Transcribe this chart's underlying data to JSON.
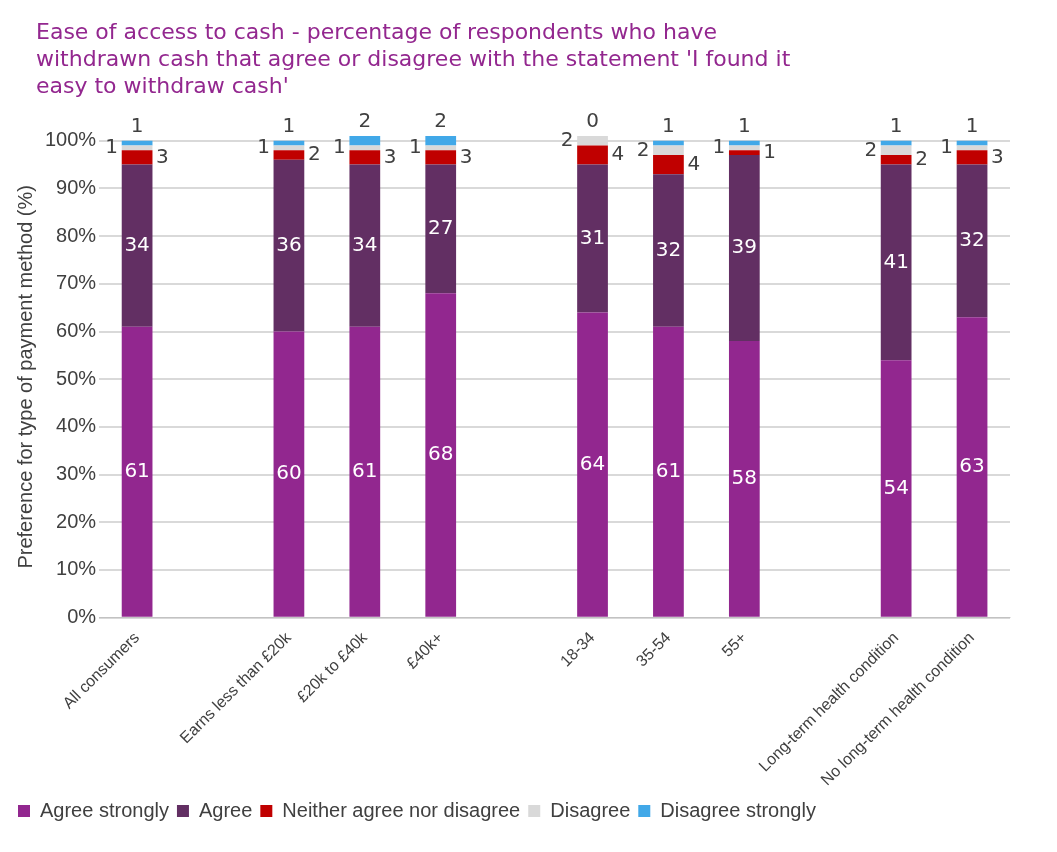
{
  "chart_data": {
    "type": "bar",
    "stacked": true,
    "title": "Ease of access to cash - percentage of respondents who have withdrawn cash that agree or disagree with the statement 'I found it easy to withdraw cash'",
    "ylabel": "Preference for type of payment method (%)",
    "categories": [
      "All consumers",
      null,
      "Earns less than £20k",
      "£20k to £40k",
      "£40k+",
      null,
      "18-34",
      "35-54",
      "55+",
      null,
      "Long-term health condition",
      "No long-term health condition"
    ],
    "series": [
      {
        "name": "Agree strongly",
        "color": "#92278f",
        "values": [
          61,
          null,
          60,
          61,
          68,
          null,
          64,
          61,
          58,
          null,
          54,
          63
        ]
      },
      {
        "name": "Agree",
        "color": "#622f63",
        "values": [
          34,
          null,
          36,
          34,
          27,
          null,
          31,
          32,
          39,
          null,
          41,
          32
        ]
      },
      {
        "name": "Neither agree nor disagree",
        "color": "#c00000",
        "values": [
          3,
          null,
          2,
          3,
          3,
          null,
          4,
          4,
          1,
          null,
          2,
          3
        ]
      },
      {
        "name": "Disagree",
        "color": "#d9d9d9",
        "values": [
          1,
          null,
          1,
          1,
          1,
          null,
          2,
          2,
          1,
          null,
          2,
          1
        ]
      },
      {
        "name": "Disagree strongly",
        "color": "#41a8e8",
        "values": [
          1,
          null,
          1,
          2,
          2,
          null,
          0,
          1,
          1,
          null,
          1,
          1
        ]
      }
    ],
    "ylim": [
      0,
      101
    ],
    "yticks": [
      {
        "value": 0,
        "label": "0%"
      },
      {
        "value": 10,
        "label": "10%"
      },
      {
        "value": 20,
        "label": "20%"
      },
      {
        "value": 30,
        "label": "30%"
      },
      {
        "value": 40,
        "label": "40%"
      },
      {
        "value": 50,
        "label": "50%"
      },
      {
        "value": 60,
        "label": "60%"
      },
      {
        "value": 70,
        "label": "70%"
      },
      {
        "value": 80,
        "label": "80%"
      },
      {
        "value": 90,
        "label": "90%"
      },
      {
        "value": 100,
        "label": "100%"
      }
    ],
    "grid": "y",
    "legend": "bottom",
    "data_labels": true
  }
}
